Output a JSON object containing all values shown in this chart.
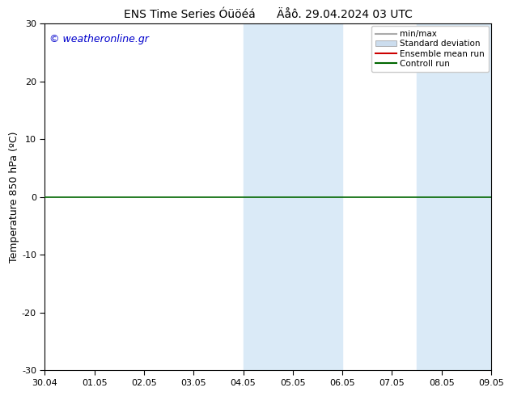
{
  "title": "ENS Time Series Óüöéá",
  "title2": "Äåô. 29.04.2024 03 UTC",
  "ylabel": "Temperature 850 hPa (ºC)",
  "watermark": "© weatheronline.gr",
  "ylim": [
    -30,
    30
  ],
  "yticks": [
    -30,
    -20,
    -10,
    0,
    10,
    20,
    30
  ],
  "xtick_labels": [
    "30.04",
    "01.05",
    "02.05",
    "03.05",
    "04.05",
    "05.05",
    "06.05",
    "07.05",
    "08.05",
    "09.05"
  ],
  "background_color": "#ffffff",
  "plot_bg_color": "#ffffff",
  "shaded_color": "#daeaf7",
  "hline_y": 0,
  "hline_color": "#006600",
  "legend_items": [
    {
      "label": "min/max",
      "color": "#aaaaaa",
      "type": "line"
    },
    {
      "label": "Standard deviation",
      "color": "#ccddee",
      "type": "box"
    },
    {
      "label": "Ensemble mean run",
      "color": "#cc0000",
      "type": "line"
    },
    {
      "label": "Controll run",
      "color": "#006600",
      "type": "line"
    }
  ],
  "title_fontsize": 10,
  "tick_fontsize": 8,
  "ylabel_fontsize": 9,
  "watermark_fontsize": 9,
  "watermark_color": "#0000cc"
}
